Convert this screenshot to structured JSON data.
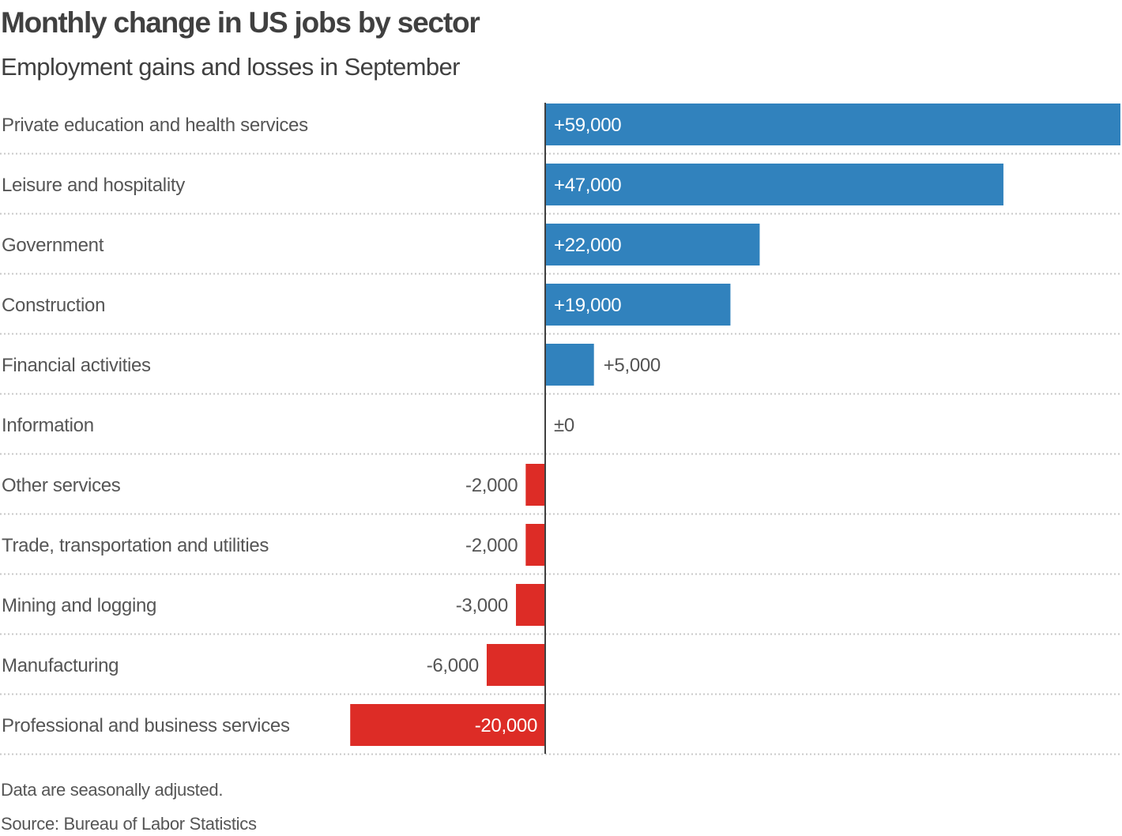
{
  "chart_data": {
    "type": "bar",
    "orientation": "horizontal",
    "title": "Monthly change in US jobs by sector",
    "subtitle": "Employment gains and losses in September",
    "categories": [
      "Private education and health services",
      "Leisure and hospitality",
      "Government",
      "Construction",
      "Financial activities",
      "Information",
      "Other services",
      "Trade, transportation and utilities",
      "Mining and logging",
      "Manufacturing",
      "Professional and business services"
    ],
    "values": [
      59000,
      47000,
      22000,
      19000,
      5000,
      0,
      -2000,
      -2000,
      -3000,
      -6000,
      -20000
    ],
    "data_labels": [
      "+59,000",
      "+47,000",
      "+22,000",
      "+19,000",
      "+5,000",
      "±0",
      "-2,000",
      "-2,000",
      "-3,000",
      "-6,000",
      "-20,000"
    ],
    "xlim": [
      -20000,
      59000
    ],
    "grid": false,
    "colors": {
      "positive": "#3182bd",
      "negative": "#dd2c26",
      "axis": "#404040",
      "text": "#555555"
    }
  },
  "footer": {
    "note": "Data are seasonally adjusted.",
    "source": "Source: Bureau of Labor Statistics"
  }
}
